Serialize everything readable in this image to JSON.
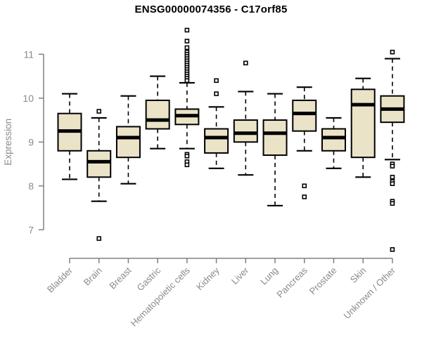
{
  "title": "ENSG00000074356 - C17orf85",
  "colors": {
    "background": "#ffffff",
    "box_fill": "#eae3c8",
    "box_stroke": "#000000",
    "median": "#000000",
    "whisker": "#000000",
    "outlier_stroke": "#000000",
    "outlier_fill": "#ffffff",
    "axis": "#808080",
    "tick_label": "#8a8a8a",
    "title": "#000000"
  },
  "chart_data": {
    "type": "boxplot",
    "title": "ENSG00000074356 - C17orf85",
    "xlabel": "",
    "ylabel": "Expression",
    "yticks": [
      7,
      8,
      9,
      10,
      11
    ],
    "ylim": [
      6.4,
      11.7
    ],
    "grid": false,
    "legend": null,
    "categories": [
      "Bladder",
      "Brain",
      "Breast",
      "Gastric",
      "Hematopoietic cells",
      "Kidney",
      "Liver",
      "Lung",
      "Pancreas",
      "Prostate",
      "Skin",
      "Unknown / Other"
    ],
    "series": [
      {
        "name": "Bladder",
        "low": 8.15,
        "q1": 8.8,
        "median": 9.25,
        "q3": 9.65,
        "high": 10.1,
        "outliers": []
      },
      {
        "name": "Brain",
        "low": 7.65,
        "q1": 8.2,
        "median": 8.55,
        "q3": 8.8,
        "high": 9.55,
        "outliers": [
          9.7,
          6.8
        ]
      },
      {
        "name": "Breast",
        "low": 8.05,
        "q1": 8.65,
        "median": 9.1,
        "q3": 9.35,
        "high": 10.05,
        "outliers": []
      },
      {
        "name": "Gastric",
        "low": 8.85,
        "q1": 9.3,
        "median": 9.5,
        "q3": 9.95,
        "high": 10.5,
        "outliers": []
      },
      {
        "name": "Hematopoietic cells",
        "low": 8.85,
        "q1": 9.4,
        "median": 9.6,
        "q3": 9.75,
        "high": 10.35,
        "outliers": [
          11.55,
          11.3,
          11.15,
          11.05,
          11.0,
          10.95,
          10.9,
          10.85,
          10.8,
          10.75,
          10.7,
          10.65,
          10.6,
          10.55,
          10.5,
          10.45,
          10.4,
          8.72,
          8.68,
          8.55,
          8.48
        ]
      },
      {
        "name": "Kidney",
        "low": 8.4,
        "q1": 8.75,
        "median": 9.1,
        "q3": 9.3,
        "high": 9.8,
        "outliers": [
          10.4,
          10.1
        ]
      },
      {
        "name": "Liver",
        "low": 8.25,
        "q1": 9.0,
        "median": 9.2,
        "q3": 9.5,
        "high": 10.15,
        "outliers": [
          10.8
        ]
      },
      {
        "name": "Lung",
        "low": 7.55,
        "q1": 8.7,
        "median": 9.2,
        "q3": 9.5,
        "high": 10.1,
        "outliers": []
      },
      {
        "name": "Pancreas",
        "low": 8.8,
        "q1": 9.25,
        "median": 9.65,
        "q3": 9.95,
        "high": 10.25,
        "outliers": [
          8.0,
          7.75
        ]
      },
      {
        "name": "Prostate",
        "low": 8.4,
        "q1": 8.8,
        "median": 9.1,
        "q3": 9.3,
        "high": 9.55,
        "outliers": []
      },
      {
        "name": "Skin",
        "low": 8.2,
        "q1": 8.65,
        "median": 9.85,
        "q3": 10.2,
        "high": 10.45,
        "outliers": []
      },
      {
        "name": "Unknown / Other",
        "low": 8.6,
        "q1": 9.45,
        "median": 9.75,
        "q3": 10.05,
        "high": 10.9,
        "outliers": [
          11.05,
          8.5,
          8.45,
          8.2,
          8.1,
          8.05,
          7.65,
          7.6,
          6.55
        ]
      }
    ]
  }
}
